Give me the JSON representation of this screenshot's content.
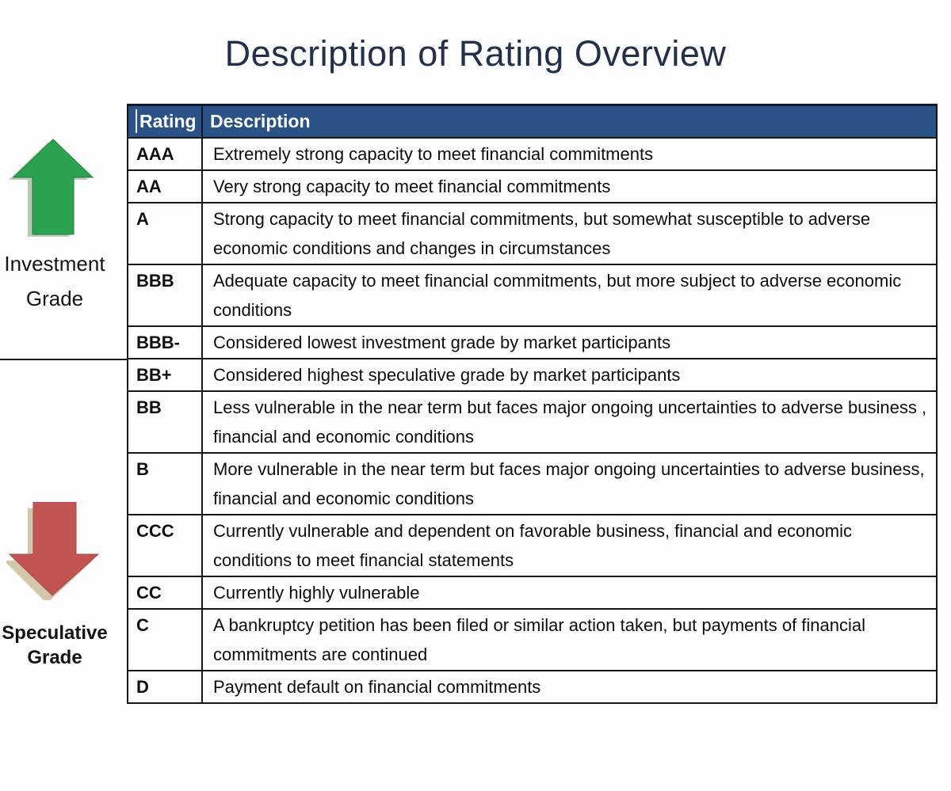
{
  "title": "Description of Rating Overview",
  "colors": {
    "header_background": "#2a5286",
    "header_text": "#ffffff",
    "title_text": "#233049",
    "table_border": "#161616",
    "investment_arrow_green": "#2ba24f",
    "speculative_arrow_red": "#c25553"
  },
  "left_rail": {
    "investment": {
      "icon": "up-arrow-icon",
      "line1": "Investment",
      "line2": "Grade"
    },
    "speculative": {
      "icon": "down-arrow-icon",
      "line1": "Speculative",
      "line2": "Grade"
    }
  },
  "table": {
    "columns": [
      "Rating",
      "Description"
    ],
    "rows": [
      {
        "rating": "AAA",
        "description": "Extremely strong capacity to meet financial commitments"
      },
      {
        "rating": "AA",
        "description": "Very strong capacity to meet financial commitments"
      },
      {
        "rating": "A",
        "description": "Strong capacity to meet financial commitments, but somewhat susceptible to adverse economic conditions and changes in circumstances"
      },
      {
        "rating": "BBB",
        "description": "Adequate capacity to meet financial commitments, but more subject to adverse economic conditions"
      },
      {
        "rating": "BBB-",
        "description": "Considered lowest investment grade by market participants"
      },
      {
        "rating": "BB+",
        "description": "Considered highest speculative grade by market participants"
      },
      {
        "rating": "BB",
        "description": "Less vulnerable in the near term but faces major ongoing uncertainties to adverse business , financial and economic conditions"
      },
      {
        "rating": "B",
        "description": "More vulnerable in the near term but faces major ongoing uncertainties to adverse business, financial and economic conditions"
      },
      {
        "rating": "CCC",
        "description": "Currently vulnerable and dependent on favorable business, financial and economic conditions to meet financial statements"
      },
      {
        "rating": "CC",
        "description": "Currently highly vulnerable"
      },
      {
        "rating": "C",
        "description": "A bankruptcy petition has been filed or similar action taken, but payments of financial commitments are continued"
      },
      {
        "rating": "D",
        "description": "Payment default on financial commitments"
      }
    ]
  }
}
